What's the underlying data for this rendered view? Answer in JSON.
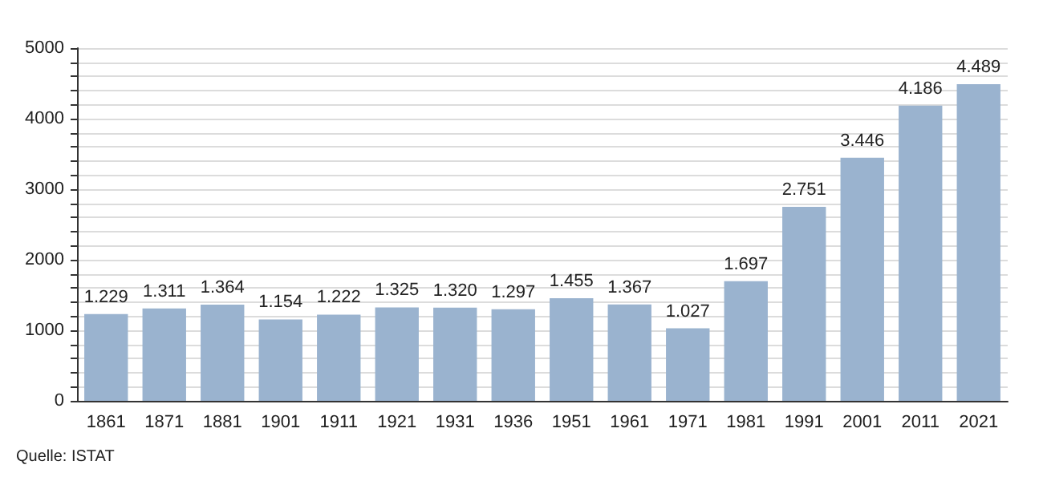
{
  "chart_data": {
    "type": "bar",
    "categories": [
      "1861",
      "1871",
      "1881",
      "1901",
      "1911",
      "1921",
      "1931",
      "1936",
      "1951",
      "1961",
      "1971",
      "1981",
      "1991",
      "2001",
      "2011",
      "2021"
    ],
    "values": [
      1229,
      1311,
      1364,
      1154,
      1222,
      1325,
      1320,
      1297,
      1455,
      1367,
      1027,
      1697,
      2751,
      3446,
      4186,
      4489
    ],
    "value_labels": [
      "1.229",
      "1.311",
      "1.364",
      "1.154",
      "1.222",
      "1.325",
      "1.320",
      "1.297",
      "1.455",
      "1.367",
      "1.027",
      "1.697",
      "2.751",
      "3.446",
      "4.186",
      "4.489"
    ],
    "color": "#9ab3cf",
    "ylim": [
      0,
      5000
    ],
    "yticks": [
      0,
      {
        "value": 200,
        "label": null
      },
      {
        "value": 400,
        "label": null
      },
      {
        "value": 600,
        "label": null
      },
      {
        "value": 800,
        "label": null
      },
      1000,
      {
        "value": 1200,
        "label": null
      },
      {
        "value": 1400,
        "label": null
      },
      {
        "value": 1600,
        "label": null
      },
      {
        "value": 1800,
        "label": null
      },
      2000,
      {
        "value": 2200,
        "label": null
      },
      {
        "value": 2400,
        "label": null
      },
      {
        "value": 2600,
        "label": null
      },
      {
        "value": 2800,
        "label": null
      },
      3000,
      {
        "value": 3200,
        "label": null
      },
      {
        "value": 3400,
        "label": null
      },
      {
        "value": 3600,
        "label": null
      },
      {
        "value": 3800,
        "label": null
      },
      4000,
      {
        "value": 4200,
        "label": null
      },
      {
        "value": 4400,
        "label": null
      },
      {
        "value": 4600,
        "label": null
      },
      {
        "value": 4800,
        "label": null
      },
      5000
    ],
    "grid": "y",
    "annotations": [
      "Quelle: ISTAT"
    ]
  }
}
